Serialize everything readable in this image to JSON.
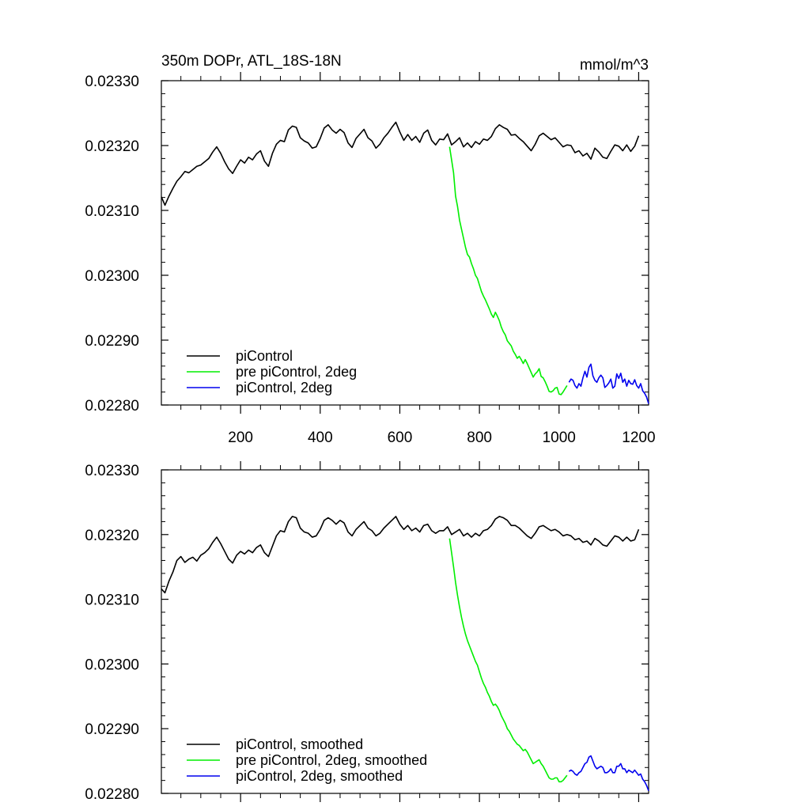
{
  "chart_data": [
    {
      "type": "line",
      "title": "350m DOPr, ATL_18S-18N",
      "units": "mmol/m^3",
      "xlim": [
        1,
        1225
      ],
      "ylim": [
        0.0228,
        0.0233
      ],
      "yticks": [
        "0.02330",
        "0.02320",
        "0.02310",
        "0.02300",
        "0.02290",
        "0.02280"
      ],
      "xticks": [
        "200",
        "400",
        "600",
        "800",
        "1000",
        "1200"
      ],
      "legend_position": "bottom-left",
      "series": [
        {
          "name": "piControl",
          "color": "#000000",
          "x": [
            1,
            10,
            20,
            30,
            40,
            50,
            60,
            70,
            80,
            90,
            100,
            110,
            120,
            130,
            140,
            150,
            160,
            170,
            180,
            190,
            200,
            210,
            220,
            230,
            240,
            250,
            260,
            270,
            280,
            290,
            300,
            310,
            320,
            330,
            340,
            350,
            360,
            370,
            380,
            390,
            400,
            410,
            420,
            430,
            440,
            450,
            460,
            470,
            480,
            490,
            500,
            510,
            520,
            530,
            540,
            550,
            560,
            570,
            580,
            590,
            600,
            610,
            620,
            630,
            640,
            650,
            660,
            670,
            680,
            690,
            700,
            710,
            720,
            730,
            740,
            750,
            760,
            770,
            780,
            790,
            800,
            810,
            820,
            830,
            840,
            850,
            860,
            870,
            880,
            890,
            900,
            910,
            920,
            930,
            940,
            950,
            960,
            970,
            980,
            990,
            1000,
            1010,
            1020,
            1030,
            1040,
            1050,
            1060,
            1070,
            1080,
            1090,
            1100,
            1110,
            1120,
            1130,
            1140,
            1150,
            1160,
            1170,
            1180,
            1190,
            1200
          ],
          "values": [
            0.023121,
            0.023108,
            0.023122,
            0.023134,
            0.023145,
            0.023152,
            0.02316,
            0.023158,
            0.023163,
            0.023168,
            0.02317,
            0.023175,
            0.02318,
            0.02319,
            0.023198,
            0.023188,
            0.023175,
            0.023164,
            0.023157,
            0.023168,
            0.023178,
            0.023173,
            0.023182,
            0.023178,
            0.023187,
            0.023192,
            0.023176,
            0.023168,
            0.023188,
            0.023202,
            0.023208,
            0.023206,
            0.023224,
            0.02323,
            0.023228,
            0.023212,
            0.023207,
            0.023204,
            0.023196,
            0.023198,
            0.023211,
            0.023227,
            0.023232,
            0.023224,
            0.023219,
            0.023225,
            0.02322,
            0.023204,
            0.023197,
            0.023211,
            0.023218,
            0.023225,
            0.023212,
            0.023207,
            0.023196,
            0.023202,
            0.023212,
            0.023219,
            0.023228,
            0.023236,
            0.023221,
            0.023208,
            0.023217,
            0.023208,
            0.023214,
            0.023205,
            0.023219,
            0.023224,
            0.023208,
            0.023201,
            0.02321,
            0.023209,
            0.023218,
            0.023201,
            0.023206,
            0.023212,
            0.023198,
            0.023204,
            0.023197,
            0.023206,
            0.023202,
            0.02321,
            0.023208,
            0.023214,
            0.023226,
            0.023232,
            0.023228,
            0.023225,
            0.023216,
            0.023217,
            0.023211,
            0.023206,
            0.023199,
            0.023192,
            0.023202,
            0.023215,
            0.023219,
            0.023214,
            0.023209,
            0.023212,
            0.023205,
            0.023198,
            0.023201,
            0.0232,
            0.023189,
            0.023192,
            0.023184,
            0.023188,
            0.023179,
            0.023196,
            0.02319,
            0.023182,
            0.02318,
            0.023191,
            0.023201,
            0.023199,
            0.023192,
            0.023201,
            0.023191,
            0.023199,
            0.023215
          ]
        },
        {
          "name": "pre piControl, 2deg",
          "color": "#00ee00",
          "x": [
            725,
            730,
            735,
            740,
            745,
            750,
            755,
            760,
            765,
            770,
            775,
            780,
            785,
            790,
            795,
            800,
            805,
            810,
            815,
            820,
            825,
            830,
            835,
            840,
            845,
            850,
            855,
            860,
            865,
            870,
            875,
            880,
            885,
            890,
            895,
            900,
            905,
            910,
            915,
            920,
            925,
            930,
            935,
            940,
            945,
            950,
            955,
            960,
            965,
            970,
            975,
            980,
            985,
            990,
            995,
            1000,
            1005,
            1010,
            1015,
            1020
          ],
          "values": [
            0.023198,
            0.023178,
            0.023158,
            0.023122,
            0.023106,
            0.023085,
            0.023071,
            0.023057,
            0.023043,
            0.023032,
            0.023028,
            0.023018,
            0.02301,
            0.023,
            0.022995,
            0.022985,
            0.022975,
            0.022968,
            0.022962,
            0.022955,
            0.022948,
            0.02294,
            0.022935,
            0.022943,
            0.022937,
            0.02293,
            0.02292,
            0.022913,
            0.022908,
            0.022899,
            0.022895,
            0.022891,
            0.022883,
            0.022878,
            0.022872,
            0.022875,
            0.02287,
            0.022864,
            0.02287,
            0.022864,
            0.022857,
            0.02285,
            0.022843,
            0.022848,
            0.022851,
            0.022856,
            0.022844,
            0.022842,
            0.022836,
            0.022829,
            0.022821,
            0.02282,
            0.022822,
            0.022826,
            0.022827,
            0.022817,
            0.022816,
            0.02282,
            0.022825,
            0.02283
          ]
        },
        {
          "name": "piControl, 2deg",
          "color": "#0000ee",
          "x": [
            1025,
            1030,
            1035,
            1040,
            1045,
            1050,
            1055,
            1060,
            1065,
            1070,
            1075,
            1080,
            1085,
            1090,
            1095,
            1100,
            1105,
            1110,
            1115,
            1120,
            1125,
            1130,
            1135,
            1140,
            1145,
            1150,
            1155,
            1160,
            1165,
            1170,
            1175,
            1180,
            1185,
            1190,
            1195,
            1200,
            1205,
            1210,
            1215,
            1220,
            1225
          ],
          "values": [
            0.022835,
            0.02284,
            0.022838,
            0.02283,
            0.022826,
            0.022833,
            0.022829,
            0.022842,
            0.022852,
            0.022843,
            0.022858,
            0.022863,
            0.022845,
            0.022838,
            0.022835,
            0.022842,
            0.022846,
            0.022842,
            0.022827,
            0.02283,
            0.022834,
            0.02284,
            0.022826,
            0.022829,
            0.022848,
            0.022841,
            0.022849,
            0.022835,
            0.02284,
            0.022829,
            0.022838,
            0.022833,
            0.022832,
            0.022839,
            0.02283,
            0.022826,
            0.022833,
            0.022822,
            0.022818,
            0.022812,
            0.022802
          ]
        }
      ]
    },
    {
      "type": "line",
      "ylim": [
        0.0228,
        0.0233
      ],
      "xlim": [
        1,
        1225
      ],
      "yticks": [
        "0.02330",
        "0.02320",
        "0.02310",
        "0.02300",
        "0.02290",
        "0.02280"
      ],
      "legend_position": "bottom-left",
      "series": [
        {
          "name": "piControl, smoothed",
          "color": "#000000",
          "x": [
            1,
            10,
            20,
            30,
            40,
            50,
            60,
            70,
            80,
            90,
            100,
            110,
            120,
            130,
            140,
            150,
            160,
            170,
            180,
            190,
            200,
            210,
            220,
            230,
            240,
            250,
            260,
            270,
            280,
            290,
            300,
            310,
            320,
            330,
            340,
            350,
            360,
            370,
            380,
            390,
            400,
            410,
            420,
            430,
            440,
            450,
            460,
            470,
            480,
            490,
            500,
            510,
            520,
            530,
            540,
            550,
            560,
            570,
            580,
            590,
            600,
            610,
            620,
            630,
            640,
            650,
            660,
            670,
            680,
            690,
            700,
            710,
            720,
            730,
            740,
            750,
            760,
            770,
            780,
            790,
            800,
            810,
            820,
            830,
            840,
            850,
            860,
            870,
            880,
            890,
            900,
            910,
            920,
            930,
            940,
            950,
            960,
            970,
            980,
            990,
            1000,
            1010,
            1020,
            1030,
            1040,
            1050,
            1060,
            1070,
            1080,
            1090,
            1100,
            1110,
            1120,
            1130,
            1140,
            1150,
            1160,
            1170,
            1180,
            1190,
            1200
          ],
          "values": [
            0.023116,
            0.02311,
            0.023128,
            0.023142,
            0.02316,
            0.023166,
            0.023157,
            0.023162,
            0.023165,
            0.023159,
            0.023168,
            0.023172,
            0.023178,
            0.023188,
            0.023196,
            0.023186,
            0.023174,
            0.023162,
            0.023156,
            0.023168,
            0.023174,
            0.02317,
            0.023176,
            0.023172,
            0.02318,
            0.023184,
            0.023172,
            0.023166,
            0.023182,
            0.023198,
            0.023206,
            0.023204,
            0.02322,
            0.023228,
            0.023226,
            0.02321,
            0.023204,
            0.023202,
            0.023196,
            0.023198,
            0.023208,
            0.023222,
            0.023226,
            0.023222,
            0.023216,
            0.023222,
            0.023218,
            0.023204,
            0.023198,
            0.023208,
            0.023214,
            0.02322,
            0.02321,
            0.023206,
            0.023198,
            0.023202,
            0.02321,
            0.023216,
            0.023222,
            0.023228,
            0.023216,
            0.023208,
            0.023214,
            0.023206,
            0.02321,
            0.023204,
            0.023214,
            0.023216,
            0.023206,
            0.023202,
            0.023206,
            0.023206,
            0.023212,
            0.0232,
            0.023204,
            0.023208,
            0.023198,
            0.023202,
            0.023196,
            0.023202,
            0.023198,
            0.023206,
            0.023208,
            0.023214,
            0.023224,
            0.023228,
            0.023226,
            0.023222,
            0.023214,
            0.023214,
            0.02321,
            0.023204,
            0.023198,
            0.023194,
            0.023202,
            0.023212,
            0.023214,
            0.02321,
            0.023206,
            0.023208,
            0.023204,
            0.023198,
            0.0232,
            0.023198,
            0.023192,
            0.023194,
            0.023188,
            0.02319,
            0.023184,
            0.023194,
            0.02319,
            0.023184,
            0.023182,
            0.02319,
            0.023198,
            0.023196,
            0.02319,
            0.023196,
            0.02319,
            0.023192,
            0.023208
          ]
        },
        {
          "name": "pre piControl, 2deg, smoothed",
          "color": "#00ee00",
          "x": [
            725,
            730,
            735,
            740,
            745,
            750,
            755,
            760,
            765,
            770,
            775,
            780,
            785,
            790,
            795,
            800,
            805,
            810,
            815,
            820,
            825,
            830,
            835,
            840,
            845,
            850,
            855,
            860,
            865,
            870,
            875,
            880,
            885,
            890,
            895,
            900,
            905,
            910,
            915,
            920,
            925,
            930,
            935,
            940,
            945,
            950,
            955,
            960,
            965,
            970,
            975,
            980,
            985,
            990,
            995,
            1000,
            1005,
            1010,
            1015,
            1020
          ],
          "values": [
            0.023194,
            0.023172,
            0.02315,
            0.023126,
            0.023106,
            0.023088,
            0.023072,
            0.023058,
            0.023046,
            0.023036,
            0.023028,
            0.02302,
            0.023012,
            0.023004,
            0.022998,
            0.022988,
            0.022978,
            0.02297,
            0.022964,
            0.022956,
            0.02295,
            0.022942,
            0.022936,
            0.022938,
            0.022934,
            0.022928,
            0.02292,
            0.022914,
            0.022908,
            0.0229,
            0.022896,
            0.02289,
            0.022884,
            0.02288,
            0.022876,
            0.022874,
            0.02287,
            0.022866,
            0.022868,
            0.022864,
            0.022858,
            0.022852,
            0.022846,
            0.022848,
            0.02285,
            0.022852,
            0.022846,
            0.022842,
            0.022836,
            0.02283,
            0.022824,
            0.022822,
            0.022822,
            0.022824,
            0.022824,
            0.022818,
            0.022818,
            0.02282,
            0.022824,
            0.022828
          ]
        },
        {
          "name": "piControl, 2deg, smoothed",
          "color": "#0000ee",
          "x": [
            1025,
            1030,
            1035,
            1040,
            1045,
            1050,
            1055,
            1060,
            1065,
            1070,
            1075,
            1080,
            1085,
            1090,
            1095,
            1100,
            1105,
            1110,
            1115,
            1120,
            1125,
            1130,
            1135,
            1140,
            1145,
            1150,
            1155,
            1160,
            1165,
            1170,
            1175,
            1180,
            1185,
            1190,
            1195,
            1200,
            1205,
            1210,
            1215,
            1220,
            1225
          ],
          "values": [
            0.022834,
            0.022836,
            0.022834,
            0.02283,
            0.022828,
            0.022832,
            0.022834,
            0.02284,
            0.022846,
            0.022848,
            0.022856,
            0.022858,
            0.02285,
            0.022842,
            0.022838,
            0.02284,
            0.022842,
            0.02284,
            0.022832,
            0.022832,
            0.022834,
            0.022838,
            0.022832,
            0.022832,
            0.022842,
            0.022842,
            0.022846,
            0.022838,
            0.022838,
            0.022832,
            0.022836,
            0.022834,
            0.022832,
            0.022836,
            0.022832,
            0.022828,
            0.02283,
            0.022822,
            0.022818,
            0.022812,
            0.022804
          ]
        }
      ]
    }
  ]
}
